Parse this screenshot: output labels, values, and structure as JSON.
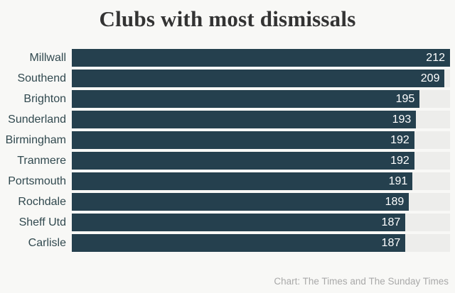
{
  "chart_data": {
    "type": "bar",
    "orientation": "horizontal",
    "title": "Clubs with most dismissals",
    "categories": [
      "Millwall",
      "Southend",
      "Brighton",
      "Sunderland",
      "Birmingham",
      "Tranmere",
      "Portsmouth",
      "Rochdale",
      "Sheff Utd",
      "Carlisle"
    ],
    "values": [
      212,
      209,
      195,
      193,
      192,
      192,
      191,
      189,
      187,
      187
    ],
    "xlim": [
      0,
      212
    ],
    "value_labels_shown": true,
    "grid": false,
    "legend": "none",
    "source": "Chart: The Times and The Sunday Times"
  },
  "colors": {
    "bar": "#25404e",
    "track": "#ededeb",
    "page_background": "#f8f8f6",
    "title_text": "#333333",
    "label_text": "#31494f",
    "value_text": "#ffffff",
    "source_text": "#a9a9a9"
  }
}
